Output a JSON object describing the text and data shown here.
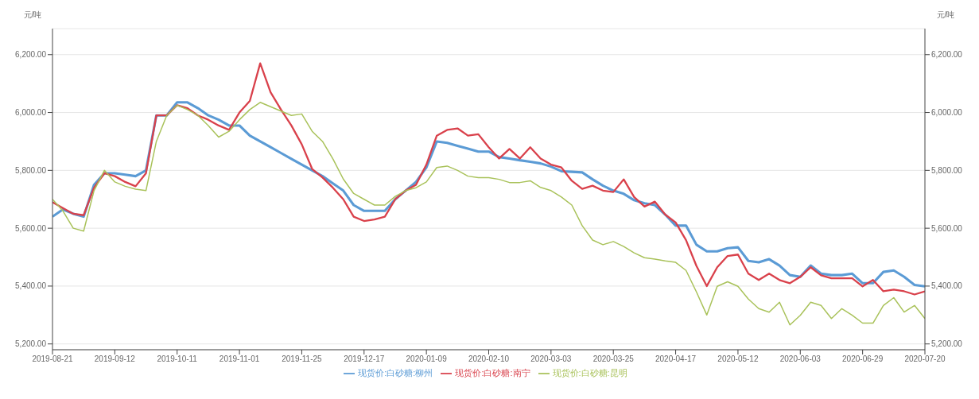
{
  "chart_data": {
    "type": "line",
    "ylabel": "元/吨",
    "y2label": "元/吨",
    "categories": [
      "2019-08-21",
      null,
      null,
      null,
      null,
      null,
      "2019-09-12",
      null,
      null,
      null,
      null,
      null,
      "2019-10-11",
      null,
      null,
      null,
      null,
      null,
      "2019-11-01",
      null,
      null,
      null,
      null,
      null,
      "2019-11-25",
      null,
      null,
      null,
      null,
      null,
      "2019-12-17",
      null,
      null,
      null,
      null,
      null,
      "2020-01-09",
      null,
      null,
      null,
      null,
      null,
      "2020-02-10",
      null,
      null,
      null,
      null,
      null,
      "2020-03-03",
      null,
      null,
      null,
      null,
      null,
      "2020-03-25",
      null,
      null,
      null,
      null,
      null,
      "2020-04-17",
      null,
      null,
      null,
      null,
      null,
      "2020-05-12",
      null,
      null,
      null,
      null,
      null,
      "2020-06-03",
      null,
      null,
      null,
      null,
      null,
      "2020-06-29",
      null,
      null,
      null,
      null,
      null,
      "2020-07-20"
    ],
    "series": [
      {
        "name": "现货价:白砂糖:柳州",
        "color": "#5b9bd5",
        "values": [
          5640,
          5665,
          5650,
          5640,
          5750,
          5790,
          5790,
          5785,
          5780,
          5800,
          5990,
          5990,
          6035,
          6035,
          6015,
          5990,
          5975,
          5955,
          5955,
          5920,
          5900,
          5880,
          5860,
          5840,
          5820,
          5800,
          5780,
          5755,
          5730,
          5680,
          5660,
          5660,
          5660,
          5700,
          5730,
          5760,
          5810,
          5900,
          5895,
          5885,
          5875,
          5865,
          5865,
          5846,
          5841,
          5835,
          5830,
          5824,
          5813,
          5797,
          5795,
          5793,
          5769,
          5747,
          5730,
          5719,
          5697,
          5686,
          5680,
          5647,
          5609,
          5609,
          5543,
          5520,
          5520,
          5531,
          5534,
          5487,
          5482,
          5493,
          5471,
          5438,
          5432,
          5471,
          5443,
          5438,
          5438,
          5443,
          5410,
          5410,
          5449,
          5454,
          5432,
          5404,
          5399
        ]
      },
      {
        "name": "现货价:白砂糖:南宁",
        "color": "#d9414b",
        "values": [
          5690,
          5670,
          5650,
          5645,
          5740,
          5790,
          5780,
          5760,
          5745,
          5790,
          5990,
          5990,
          6025,
          6015,
          5990,
          5975,
          5955,
          5940,
          6000,
          6040,
          6170,
          6070,
          6010,
          5955,
          5890,
          5805,
          5775,
          5740,
          5700,
          5640,
          5625,
          5630,
          5640,
          5700,
          5730,
          5750,
          5820,
          5920,
          5940,
          5945,
          5920,
          5925,
          5880,
          5841,
          5874,
          5841,
          5880,
          5841,
          5820,
          5810,
          5764,
          5736,
          5747,
          5730,
          5725,
          5769,
          5708,
          5675,
          5692,
          5647,
          5620,
          5559,
          5470,
          5400,
          5465,
          5504,
          5509,
          5443,
          5421,
          5443,
          5421,
          5410,
          5432,
          5465,
          5437,
          5427,
          5427,
          5427,
          5399,
          5421,
          5382,
          5388,
          5382,
          5371,
          5382
        ]
      },
      {
        "name": "现货价:白砂糖:昆明",
        "color": "#a9c25a",
        "values": [
          5700,
          5660,
          5600,
          5590,
          5730,
          5800,
          5760,
          5745,
          5735,
          5730,
          5900,
          5990,
          6025,
          6010,
          5990,
          5955,
          5915,
          5935,
          5975,
          6010,
          6035,
          6020,
          6005,
          5990,
          5995,
          5935,
          5900,
          5840,
          5770,
          5720,
          5700,
          5680,
          5680,
          5710,
          5730,
          5740,
          5760,
          5810,
          5815,
          5800,
          5780,
          5775,
          5775,
          5769,
          5758,
          5758,
          5764,
          5741,
          5730,
          5708,
          5680,
          5609,
          5559,
          5543,
          5554,
          5537,
          5515,
          5498,
          5493,
          5487,
          5482,
          5454,
          5380,
          5300,
          5399,
          5415,
          5399,
          5355,
          5322,
          5310,
          5344,
          5266,
          5299,
          5344,
          5333,
          5288,
          5322,
          5299,
          5272,
          5272,
          5333,
          5360,
          5310,
          5333,
          5288
        ]
      }
    ],
    "ylim": [
      5180,
      6290
    ],
    "yticks": [
      {
        "value": 5200,
        "label": "5,200.00"
      },
      {
        "value": 5400,
        "label": "5,400.00"
      },
      {
        "value": 5600,
        "label": "5,600.00"
      },
      {
        "value": 5800,
        "label": "5,800.00"
      },
      {
        "value": 6000,
        "label": "6,000.00"
      },
      {
        "value": 6200,
        "label": "6,200.00"
      }
    ],
    "y2lim": [
      5180,
      6290
    ],
    "y2ticks": [
      {
        "value": 5200,
        "label": "5,200.00"
      },
      {
        "value": 5400,
        "label": "5,400.00"
      },
      {
        "value": 5600,
        "label": "5,600.00"
      },
      {
        "value": 5800,
        "label": "5,800.00"
      },
      {
        "value": 6000,
        "label": "6,000.00"
      },
      {
        "value": 6200,
        "label": "6,200.00"
      }
    ],
    "grid": "y",
    "legend": "bottom",
    "marker": "none",
    "line_style": "solid"
  }
}
